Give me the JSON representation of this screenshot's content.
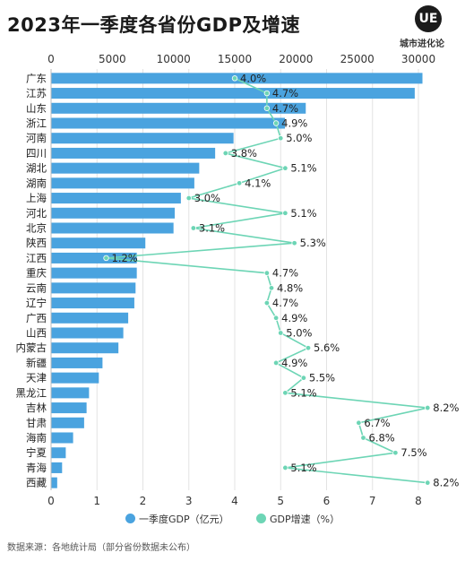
{
  "title": "2023年一季度各省份GDP及增速",
  "logo": {
    "mark": "UE",
    "text": "城市进化论"
  },
  "colors": {
    "bar": "#4aa3df",
    "line": "#6dd5b5",
    "grid": "#e3e3e3"
  },
  "legend": {
    "gdp": "一季度GDP（亿元）",
    "growth": "GDP增速（%）"
  },
  "source": "数据来源：各地统计局（部分省份数据未公布）",
  "chart_data": {
    "type": "bar",
    "orientation": "horizontal",
    "categories": [
      "广东",
      "江苏",
      "山东",
      "浙江",
      "河南",
      "四川",
      "湖北",
      "湖南",
      "上海",
      "河北",
      "北京",
      "陕西",
      "江西",
      "重庆",
      "云南",
      "辽宁",
      "广西",
      "山西",
      "内蒙古",
      "新疆",
      "天津",
      "黑龙江",
      "吉林",
      "甘肃",
      "海南",
      "宁夏",
      "青海",
      "西藏"
    ],
    "series": [
      {
        "name": "一季度GDP（亿元）",
        "type": "bar",
        "axis": "top",
        "values": [
          30330,
          29700,
          20800,
          19100,
          14900,
          13400,
          12100,
          11700,
          10600,
          10100,
          10000,
          7700,
          7000,
          7000,
          6900,
          6800,
          6300,
          5900,
          5500,
          4200,
          3900,
          3100,
          2900,
          2700,
          1800,
          1200,
          900,
          500
        ]
      },
      {
        "name": "GDP增速（%）",
        "type": "line",
        "axis": "bottom",
        "values": [
          4.0,
          4.7,
          4.7,
          4.9,
          5.0,
          3.8,
          5.1,
          4.1,
          3.0,
          5.1,
          3.1,
          5.3,
          1.2,
          4.7,
          4.8,
          4.7,
          4.9,
          5.0,
          5.6,
          4.9,
          5.5,
          5.1,
          8.2,
          6.7,
          6.8,
          7.5,
          5.1,
          8.2
        ],
        "labels": [
          "4.0%",
          "4.7%",
          "4.7%",
          "4.9%",
          "5.0%",
          "3.8%",
          "5.1%",
          "4.1%",
          "3.0%",
          "5.1%",
          "3.1%",
          "5.3%",
          "1.2%",
          "4.7%",
          "4.8%",
          "4.7%",
          "4.9%",
          "5.0%",
          "5.6%",
          "4.9%",
          "5.5%",
          "5.1%",
          "8.2%",
          "6.7%",
          "6.8%",
          "7.5%",
          "5.1%",
          "8.2%"
        ]
      }
    ],
    "top_axis": {
      "ticks": [
        "0",
        "5000",
        "10000",
        "15000",
        "20000",
        "25000",
        "30000"
      ],
      "range": [
        0,
        30000
      ]
    },
    "bottom_axis": {
      "ticks": [
        "0",
        "1",
        "2",
        "3",
        "4",
        "5",
        "6",
        "7",
        "8"
      ],
      "range": [
        0,
        8
      ]
    },
    "grid": true,
    "legend_position": "bottom"
  }
}
